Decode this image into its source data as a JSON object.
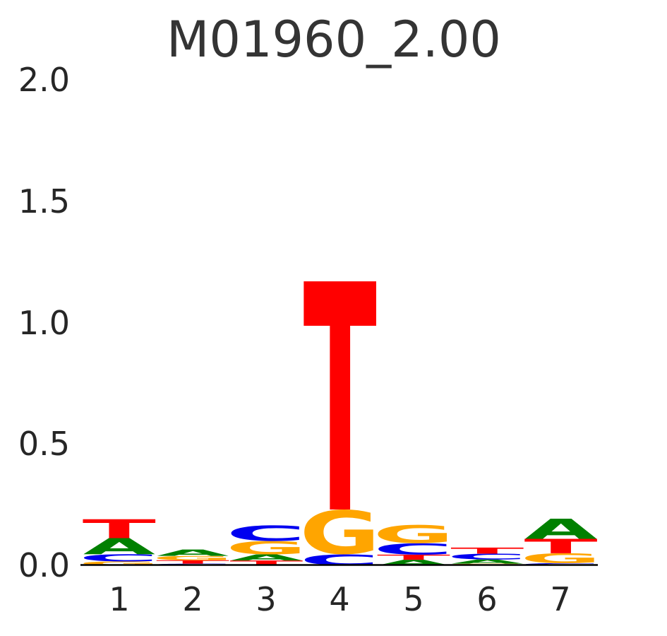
{
  "chart_data": {
    "type": "sequence_logo",
    "title": "M01960_2.00",
    "xlabel": "",
    "ylabel": "",
    "y_unit": "bits",
    "ylim": [
      0.0,
      2.0
    ],
    "y_ticks": [
      "2.0",
      "1.5",
      "1.0",
      "0.5",
      "0.0"
    ],
    "y_tick_values": [
      2.0,
      1.5,
      1.0,
      0.5,
      0.0
    ],
    "x_ticks": [
      "1",
      "2",
      "3",
      "4",
      "5",
      "6",
      "7"
    ],
    "grid": "off",
    "legend": "none",
    "alphabet_colors": {
      "A": "#008000",
      "C": "#0000F0",
      "G": "#FFA500",
      "T": "#FF0000"
    },
    "axis_color": "#000000",
    "positions": [
      {
        "position": 1,
        "stack": [
          {
            "base": "G",
            "bits": 0.016
          },
          {
            "base": "C",
            "bits": 0.03
          },
          {
            "base": "A",
            "bits": 0.066
          },
          {
            "base": "T",
            "bits": 0.078
          }
        ]
      },
      {
        "position": 2,
        "stack": [
          {
            "base": "C",
            "bits": 0.007
          },
          {
            "base": "T",
            "bits": 0.014
          },
          {
            "base": "G",
            "bits": 0.018
          },
          {
            "base": "A",
            "bits": 0.026
          }
        ]
      },
      {
        "position": 3,
        "stack": [
          {
            "base": "T",
            "bits": 0.02
          },
          {
            "base": "A",
            "bits": 0.025
          },
          {
            "base": "G",
            "bits": 0.055
          },
          {
            "base": "C",
            "bits": 0.065
          }
        ]
      },
      {
        "position": 4,
        "stack": [
          {
            "base": "C",
            "bits": 0.045
          },
          {
            "base": "G",
            "bits": 0.185
          },
          {
            "base": "T",
            "bits": 0.94
          }
        ]
      },
      {
        "position": 5,
        "stack": [
          {
            "base": "A",
            "bits": 0.023
          },
          {
            "base": "T",
            "bits": 0.021
          },
          {
            "base": "C",
            "bits": 0.047
          },
          {
            "base": "G",
            "bits": 0.076
          }
        ]
      },
      {
        "position": 6,
        "stack": [
          {
            "base": "G",
            "bits": 0.007
          },
          {
            "base": "A",
            "bits": 0.017
          },
          {
            "base": "C",
            "bits": 0.024
          },
          {
            "base": "T",
            "bits": 0.025
          }
        ]
      },
      {
        "position": 7,
        "stack": [
          {
            "base": "C",
            "bits": 0.009
          },
          {
            "base": "G",
            "bits": 0.041
          },
          {
            "base": "T",
            "bits": 0.059
          },
          {
            "base": "A",
            "bits": 0.083
          }
        ]
      }
    ]
  }
}
